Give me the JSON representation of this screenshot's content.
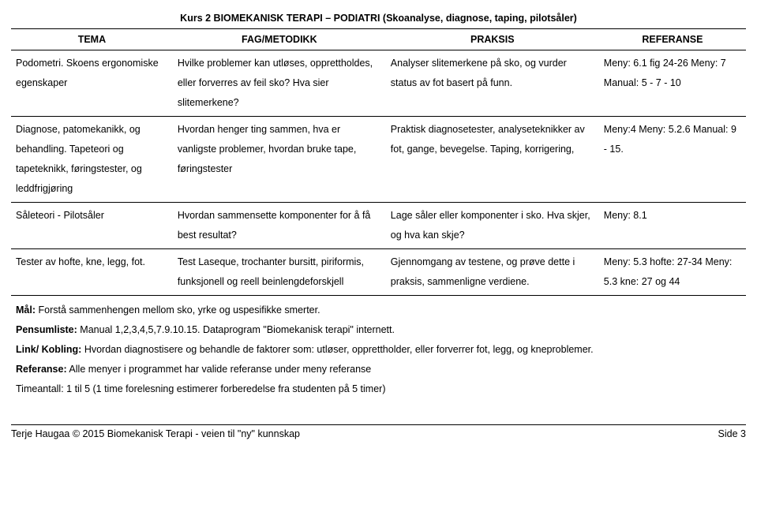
{
  "header": "Kurs 2 BIOMEKANISK TERAPI – PODIATRI (Skoanalyse, diagnose, taping, pilotsåler)",
  "cols": {
    "c1": "TEMA",
    "c2": "FAG/METODIKK",
    "c3": "PRAKSIS",
    "c4": "REFERANSE"
  },
  "rows": [
    {
      "tema": "Podometri. Skoens ergonomiske egenskaper",
      "fag": "Hvilke problemer kan utløses, opprettholdes, eller forverres av feil sko? Hva sier slitemerkene?",
      "praksis": "Analyser slitemerkene på sko, og vurder status av fot basert på funn.",
      "ref": "Meny: 6.1 fig 24-26 Meny: 7 Manual: 5 - 7 - 10"
    },
    {
      "tema": "Diagnose, patomekanikk, og behandling. Tapeteori og tapeteknikk, føringstester, og leddfrigjøring",
      "fag": "Hvordan henger ting sammen, hva er vanligste problemer, hvordan bruke tape, føringstester",
      "praksis": "Praktisk diagnosetester, analyseteknikker av fot, gange, bevegelse. Taping, korrigering,",
      "ref": "Meny:4 Meny: 5.2.6 Manual: 9 - 15."
    },
    {
      "tema": "Såleteori - Pilotsåler",
      "fag": "Hvordan sammensette komponenter for å få best resultat?",
      "praksis": "Lage såler eller komponenter i sko. Hva skjer, og hva kan skje?",
      "ref": "Meny: 8.1"
    },
    {
      "tema": "Tester av hofte, kne, legg, fot.",
      "fag": "Test Laseque, trochanter bursitt, piriformis, funksjonell og reell beinlengdeforskjell",
      "praksis": "Gjennomgang av testene, og prøve dette i praksis, sammenligne verdiene.",
      "ref": "Meny: 5.3 hofte: 27-34 Meny: 5.3 kne: 27 og 44"
    }
  ],
  "goals": {
    "maal_label": "Mål:",
    "maal": "Forstå sammenhengen mellom sko, yrke og uspesifikke smerter.",
    "pensum_label": "Pensumliste:",
    "pensum": "Manual 1,2,3,4,5,7.9.10.15. Dataprogram \"Biomekanisk terapi\" internett.",
    "link_label": "Link/ Kobling:",
    "link": "Hvordan diagnostisere og behandle de faktorer som: utløser, opprettholder, eller forverrer fot, legg, og kneproblemer.",
    "ref_label": "Referanse:",
    "ref": "Alle menyer i programmet har valide referanse under meny referanse",
    "time": "Timeantall: 1 til 5 (1 time forelesning estimerer forberedelse fra studenten på 5 timer)"
  },
  "footer": {
    "left": "Terje Haugaa © 2015 Biomekanisk Terapi - veien til \"ny\" kunnskap",
    "right": "Side 3"
  }
}
